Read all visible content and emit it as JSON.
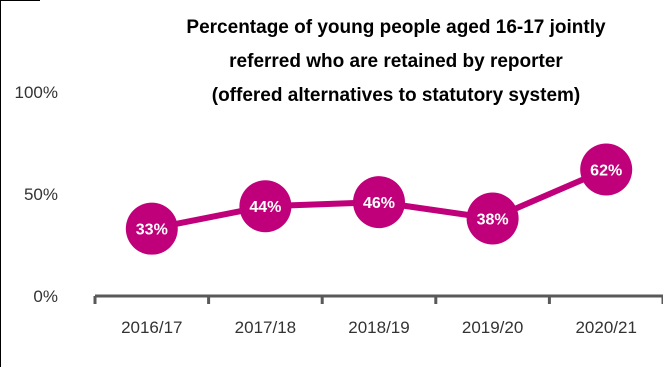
{
  "chart_data": {
    "type": "line",
    "title": [
      "Percentage of young people aged 16-17 jointly",
      "referred who are retained by reporter",
      "(offered alternatives to statutory system)"
    ],
    "categories": [
      "2016/17",
      "2017/18",
      "2018/19",
      "2019/20",
      "2020/21"
    ],
    "series": [
      {
        "values": [
          33,
          44,
          46,
          38,
          62
        ],
        "labels": [
          "33%",
          "44%",
          "46%",
          "38%",
          "62%"
        ]
      }
    ],
    "y_ticks": [
      0,
      50,
      100
    ],
    "y_tick_labels": [
      "0%",
      "50%",
      "100%"
    ],
    "ylim": [
      0,
      100
    ],
    "grid": false,
    "legend": "none",
    "line_color": "#c0007a",
    "marker_color": "#c0007a",
    "label_color": "#ffffff"
  }
}
